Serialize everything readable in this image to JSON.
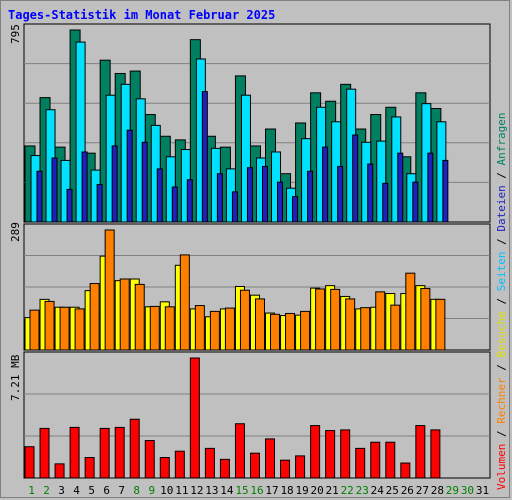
{
  "chart_data": [
    {
      "type": "bar",
      "title": "Tages-Statistik im Monat Februar 2025",
      "panel": "top",
      "y_max_label": "795",
      "categories": [
        "1",
        "2",
        "3",
        "4",
        "5",
        "6",
        "7",
        "8",
        "9",
        "10",
        "11",
        "12",
        "13",
        "14",
        "15",
        "16",
        "17",
        "18",
        "19",
        "20",
        "21",
        "22",
        "23",
        "24",
        "25",
        "26",
        "27",
        "28",
        "29",
        "30",
        "31"
      ],
      "series": [
        {
          "name": "Anfragen",
          "color": "#008060",
          "values": [
            315,
            515,
            310,
            795,
            285,
            670,
            615,
            625,
            445,
            355,
            340,
            755,
            355,
            310,
            605,
            315,
            385,
            200,
            410,
            535,
            500,
            570,
            385,
            445,
            475,
            270,
            535,
            470,
            null,
            null,
            null
          ]
        },
        {
          "name": "Dateien",
          "color": "#00e0ff",
          "values": [
            275,
            465,
            255,
            745,
            215,
            525,
            570,
            510,
            400,
            270,
            300,
            675,
            305,
            220,
            525,
            265,
            290,
            140,
            345,
            475,
            415,
            550,
            330,
            335,
            435,
            200,
            490,
            415,
            null,
            null,
            null
          ]
        },
        {
          "name": "Seiten",
          "color": "#2020c0",
          "values": [
            210,
            265,
            135,
            290,
            155,
            315,
            380,
            330,
            220,
            145,
            175,
            540,
            200,
            125,
            225,
            230,
            165,
            105,
            210,
            310,
            230,
            360,
            240,
            160,
            285,
            165,
            285,
            255,
            null,
            null,
            null
          ]
        }
      ]
    },
    {
      "type": "bar",
      "panel": "middle",
      "y_max_label": "289",
      "categories": [
        "1",
        "2",
        "3",
        "4",
        "5",
        "6",
        "7",
        "8",
        "9",
        "10",
        "11",
        "12",
        "13",
        "14",
        "15",
        "16",
        "17",
        "18",
        "19",
        "20",
        "21",
        "22",
        "23",
        "24",
        "25",
        "26",
        "27",
        "28",
        "29",
        "30",
        "31"
      ],
      "series": [
        {
          "name": "Besuche",
          "color": "#ffff00",
          "values": [
            78,
            122,
            103,
            103,
            143,
            226,
            167,
            171,
            104,
            116,
            204,
            99,
            80,
            99,
            153,
            132,
            89,
            83,
            84,
            149,
            155,
            129,
            99,
            103,
            136,
            136,
            155,
            122,
            null,
            null,
            null
          ]
        },
        {
          "name": "Rechner",
          "color": "#ff8000",
          "values": [
            96,
            117,
            103,
            99,
            160,
            289,
            171,
            158,
            105,
            104,
            229,
            107,
            93,
            101,
            144,
            123,
            86,
            88,
            93,
            147,
            146,
            123,
            102,
            140,
            108,
            185,
            148,
            122,
            null,
            null,
            null
          ]
        }
      ]
    },
    {
      "type": "bar",
      "panel": "bottom",
      "y_max_label": "7.21 MB",
      "categories": [
        "1",
        "2",
        "3",
        "4",
        "5",
        "6",
        "7",
        "8",
        "9",
        "10",
        "11",
        "12",
        "13",
        "14",
        "15",
        "16",
        "17",
        "18",
        "19",
        "20",
        "21",
        "22",
        "23",
        "24",
        "25",
        "26",
        "27",
        "28",
        "29",
        "30",
        "31"
      ],
      "series": [
        {
          "name": "Volumen",
          "color": "#ff0000",
          "values": [
            1.88,
            2.98,
            0.85,
            3.04,
            1.23,
            2.98,
            3.04,
            3.53,
            2.25,
            1.23,
            1.61,
            7.21,
            1.78,
            1.12,
            3.26,
            1.49,
            2.35,
            1.07,
            1.33,
            3.15,
            2.85,
            2.89,
            1.78,
            2.15,
            2.15,
            0.9,
            3.15,
            2.89,
            null,
            null,
            null
          ]
        }
      ]
    }
  ],
  "x_label_colors": [
    "#008000",
    "#008000",
    "#000000",
    "#000000",
    "#000000",
    "#000000",
    "#000000",
    "#008000",
    "#008000",
    "#000000",
    "#000000",
    "#000000",
    "#000000",
    "#000000",
    "#008000",
    "#008000",
    "#000000",
    "#000000",
    "#000000",
    "#000000",
    "#000000",
    "#008000",
    "#008000",
    "#000000",
    "#000000",
    "#000000",
    "#000000",
    "#000000",
    "#008000",
    "#008000",
    "#000000"
  ],
  "legend": [
    {
      "text": "Volumen",
      "color": "#ff0000"
    },
    {
      "text": " / ",
      "color": "#000000"
    },
    {
      "text": "Rechner",
      "color": "#ff8000"
    },
    {
      "text": " / ",
      "color": "#000000"
    },
    {
      "text": "Besuche",
      "color": "#e0e000"
    },
    {
      "text": " / ",
      "color": "#000000"
    },
    {
      "text": "Seiten",
      "color": "#00c0ff"
    },
    {
      "text": " / ",
      "color": "#000000"
    },
    {
      "text": "Dateien",
      "color": "#2020c0"
    },
    {
      "text": " / ",
      "color": "#000000"
    },
    {
      "text": "Anfragen",
      "color": "#008060"
    }
  ]
}
